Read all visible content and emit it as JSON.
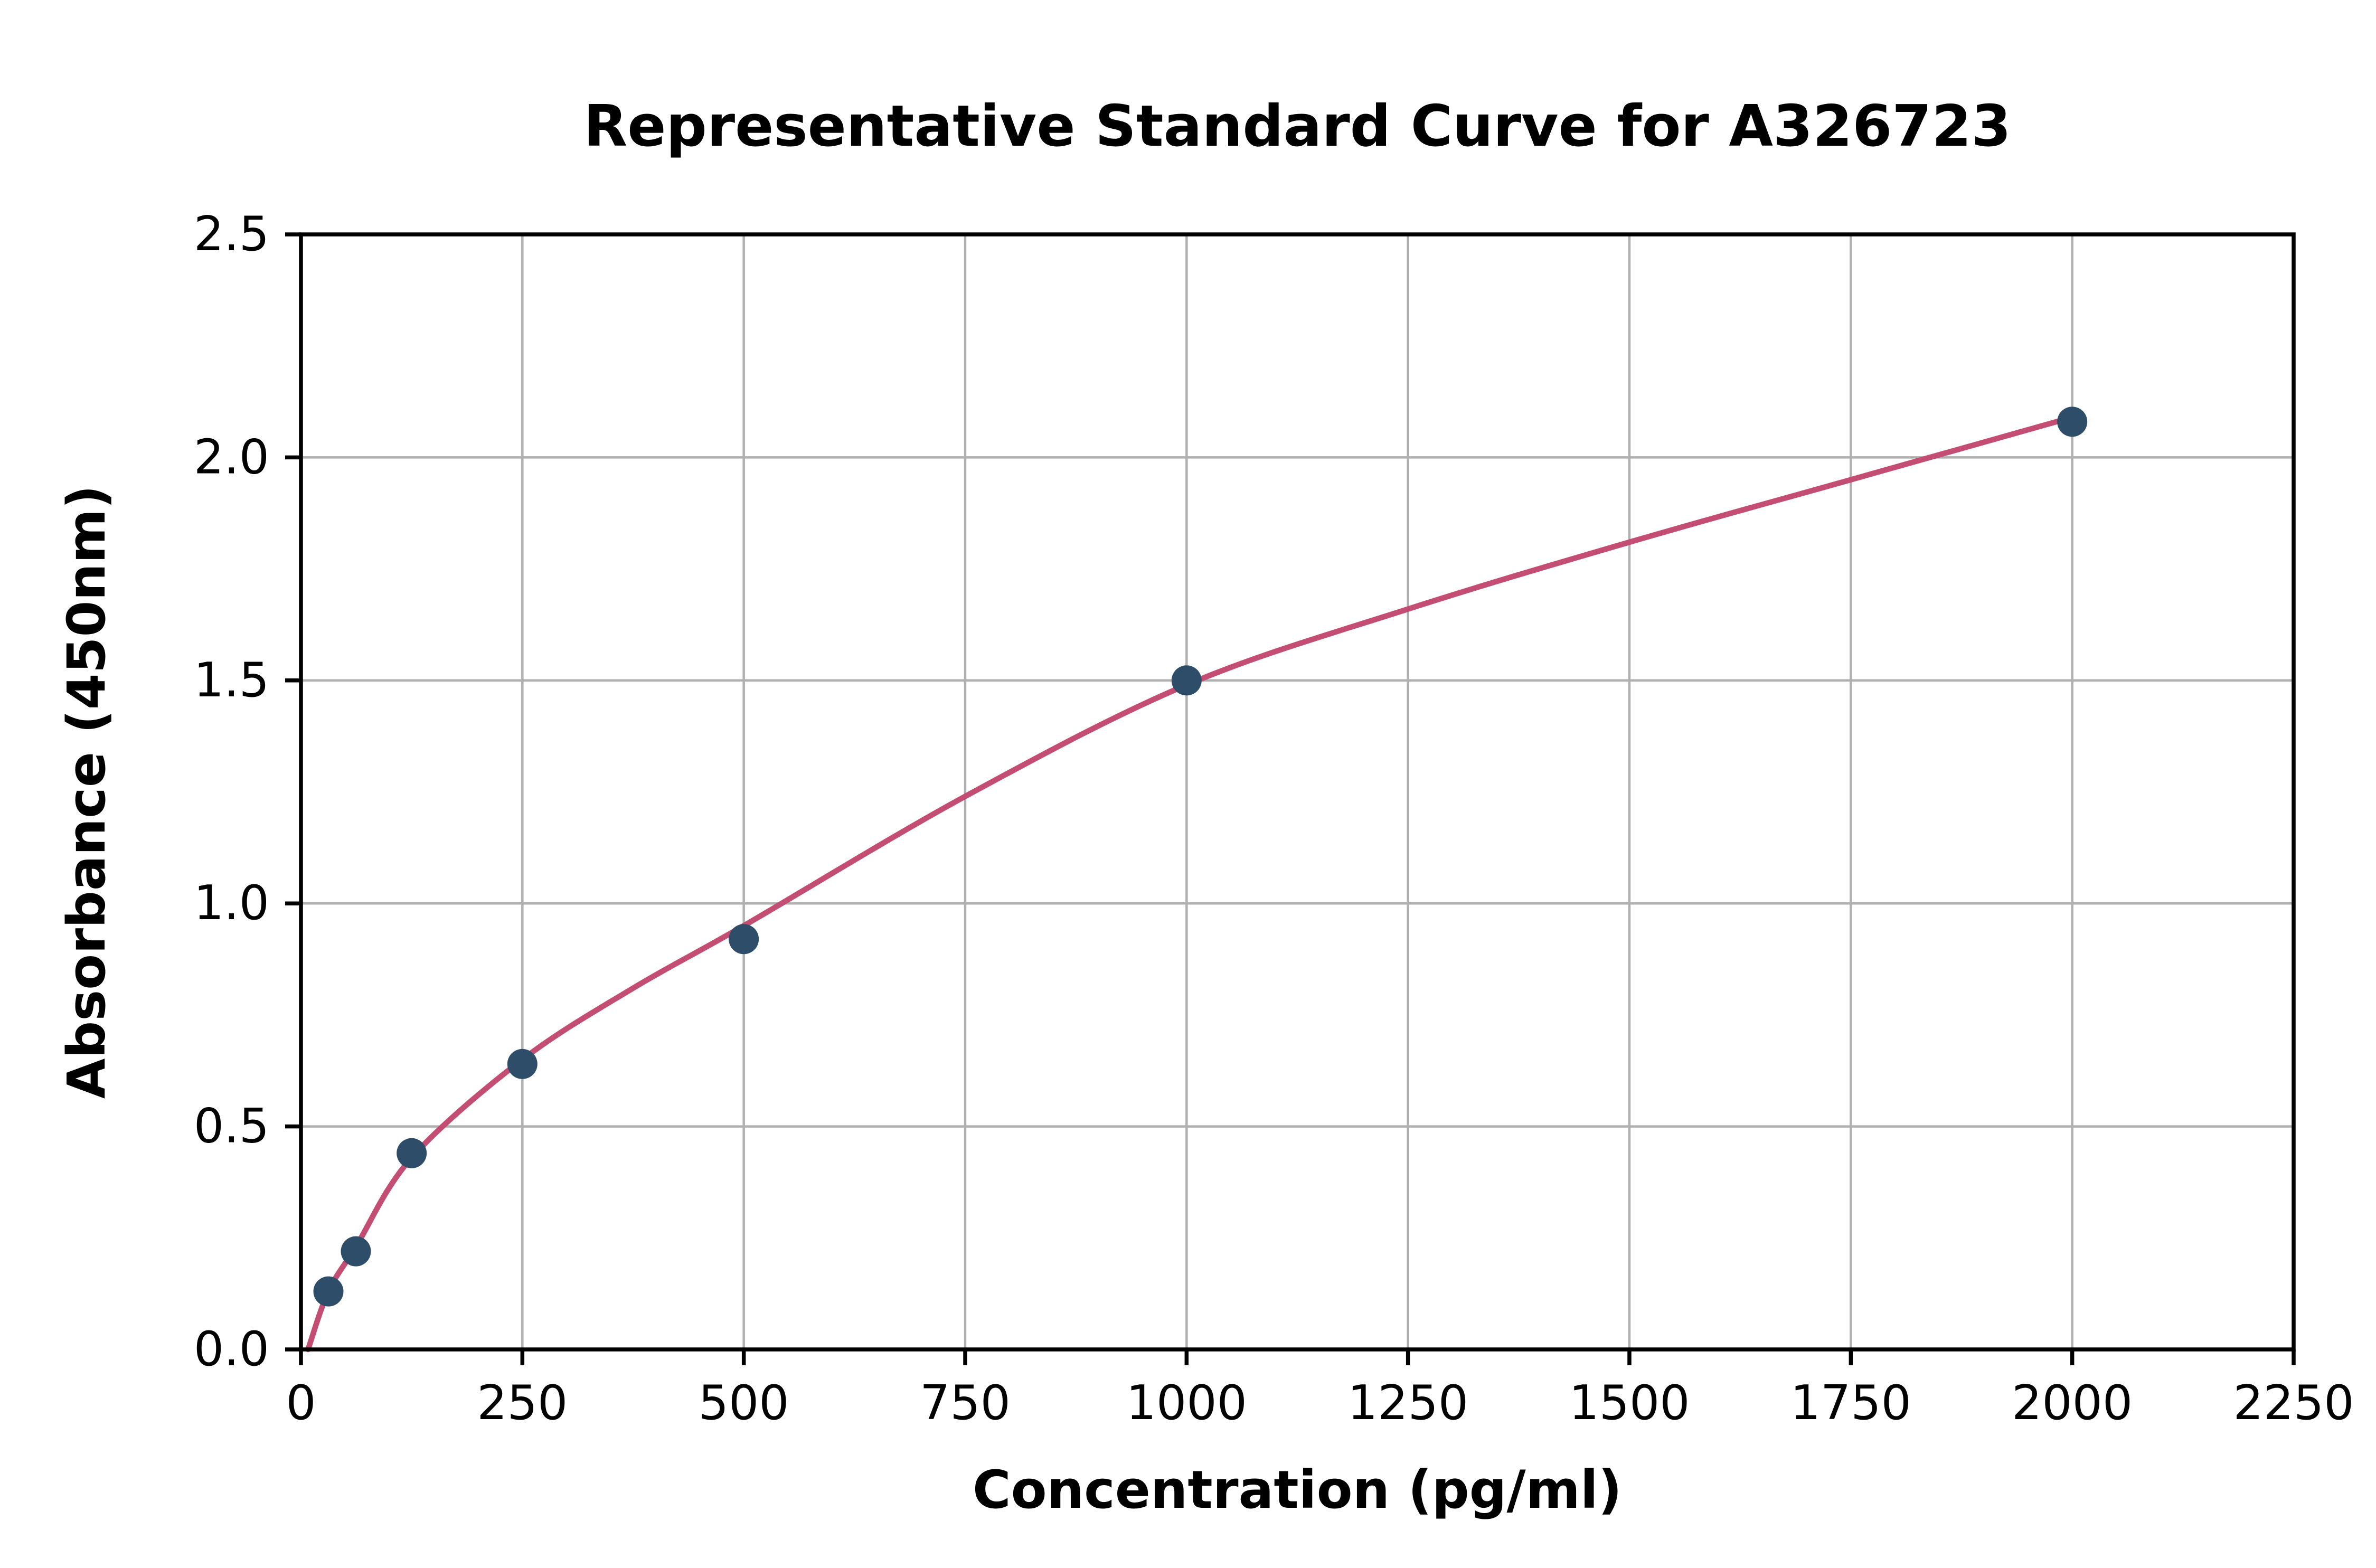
{
  "chart_data": {
    "type": "scatter",
    "title": "Representative Standard Curve for A326723",
    "xlabel": "Concentration (pg/ml)",
    "ylabel": "Absorbance (450nm)",
    "xlim": [
      0,
      2250
    ],
    "ylim": [
      0,
      2.5
    ],
    "x_ticks": [
      0,
      250,
      500,
      750,
      1000,
      1250,
      1500,
      1750,
      2000,
      2250
    ],
    "y_ticks": [
      0.0,
      0.5,
      1.0,
      1.5,
      2.0,
      2.5
    ],
    "grid": true,
    "legend": "none",
    "points": {
      "x": [
        31,
        62,
        125,
        250,
        500,
        1000,
        2000
      ],
      "y": [
        0.13,
        0.22,
        0.44,
        0.64,
        0.92,
        1.5,
        2.08
      ]
    },
    "fit_curve": {
      "x": [
        8,
        31,
        62,
        125,
        250,
        375,
        500,
        750,
        1000,
        1250,
        1500,
        1750,
        2000
      ],
      "y": [
        0.0,
        0.13,
        0.23,
        0.43,
        0.65,
        0.81,
        0.95,
        1.24,
        1.49,
        1.66,
        1.81,
        1.95,
        2.09
      ]
    },
    "colors": {
      "point": "#2e4d68",
      "curve": "#c44e73",
      "grid": "#b0b0b0",
      "axis": "#000000",
      "background": "#ffffff"
    }
  }
}
